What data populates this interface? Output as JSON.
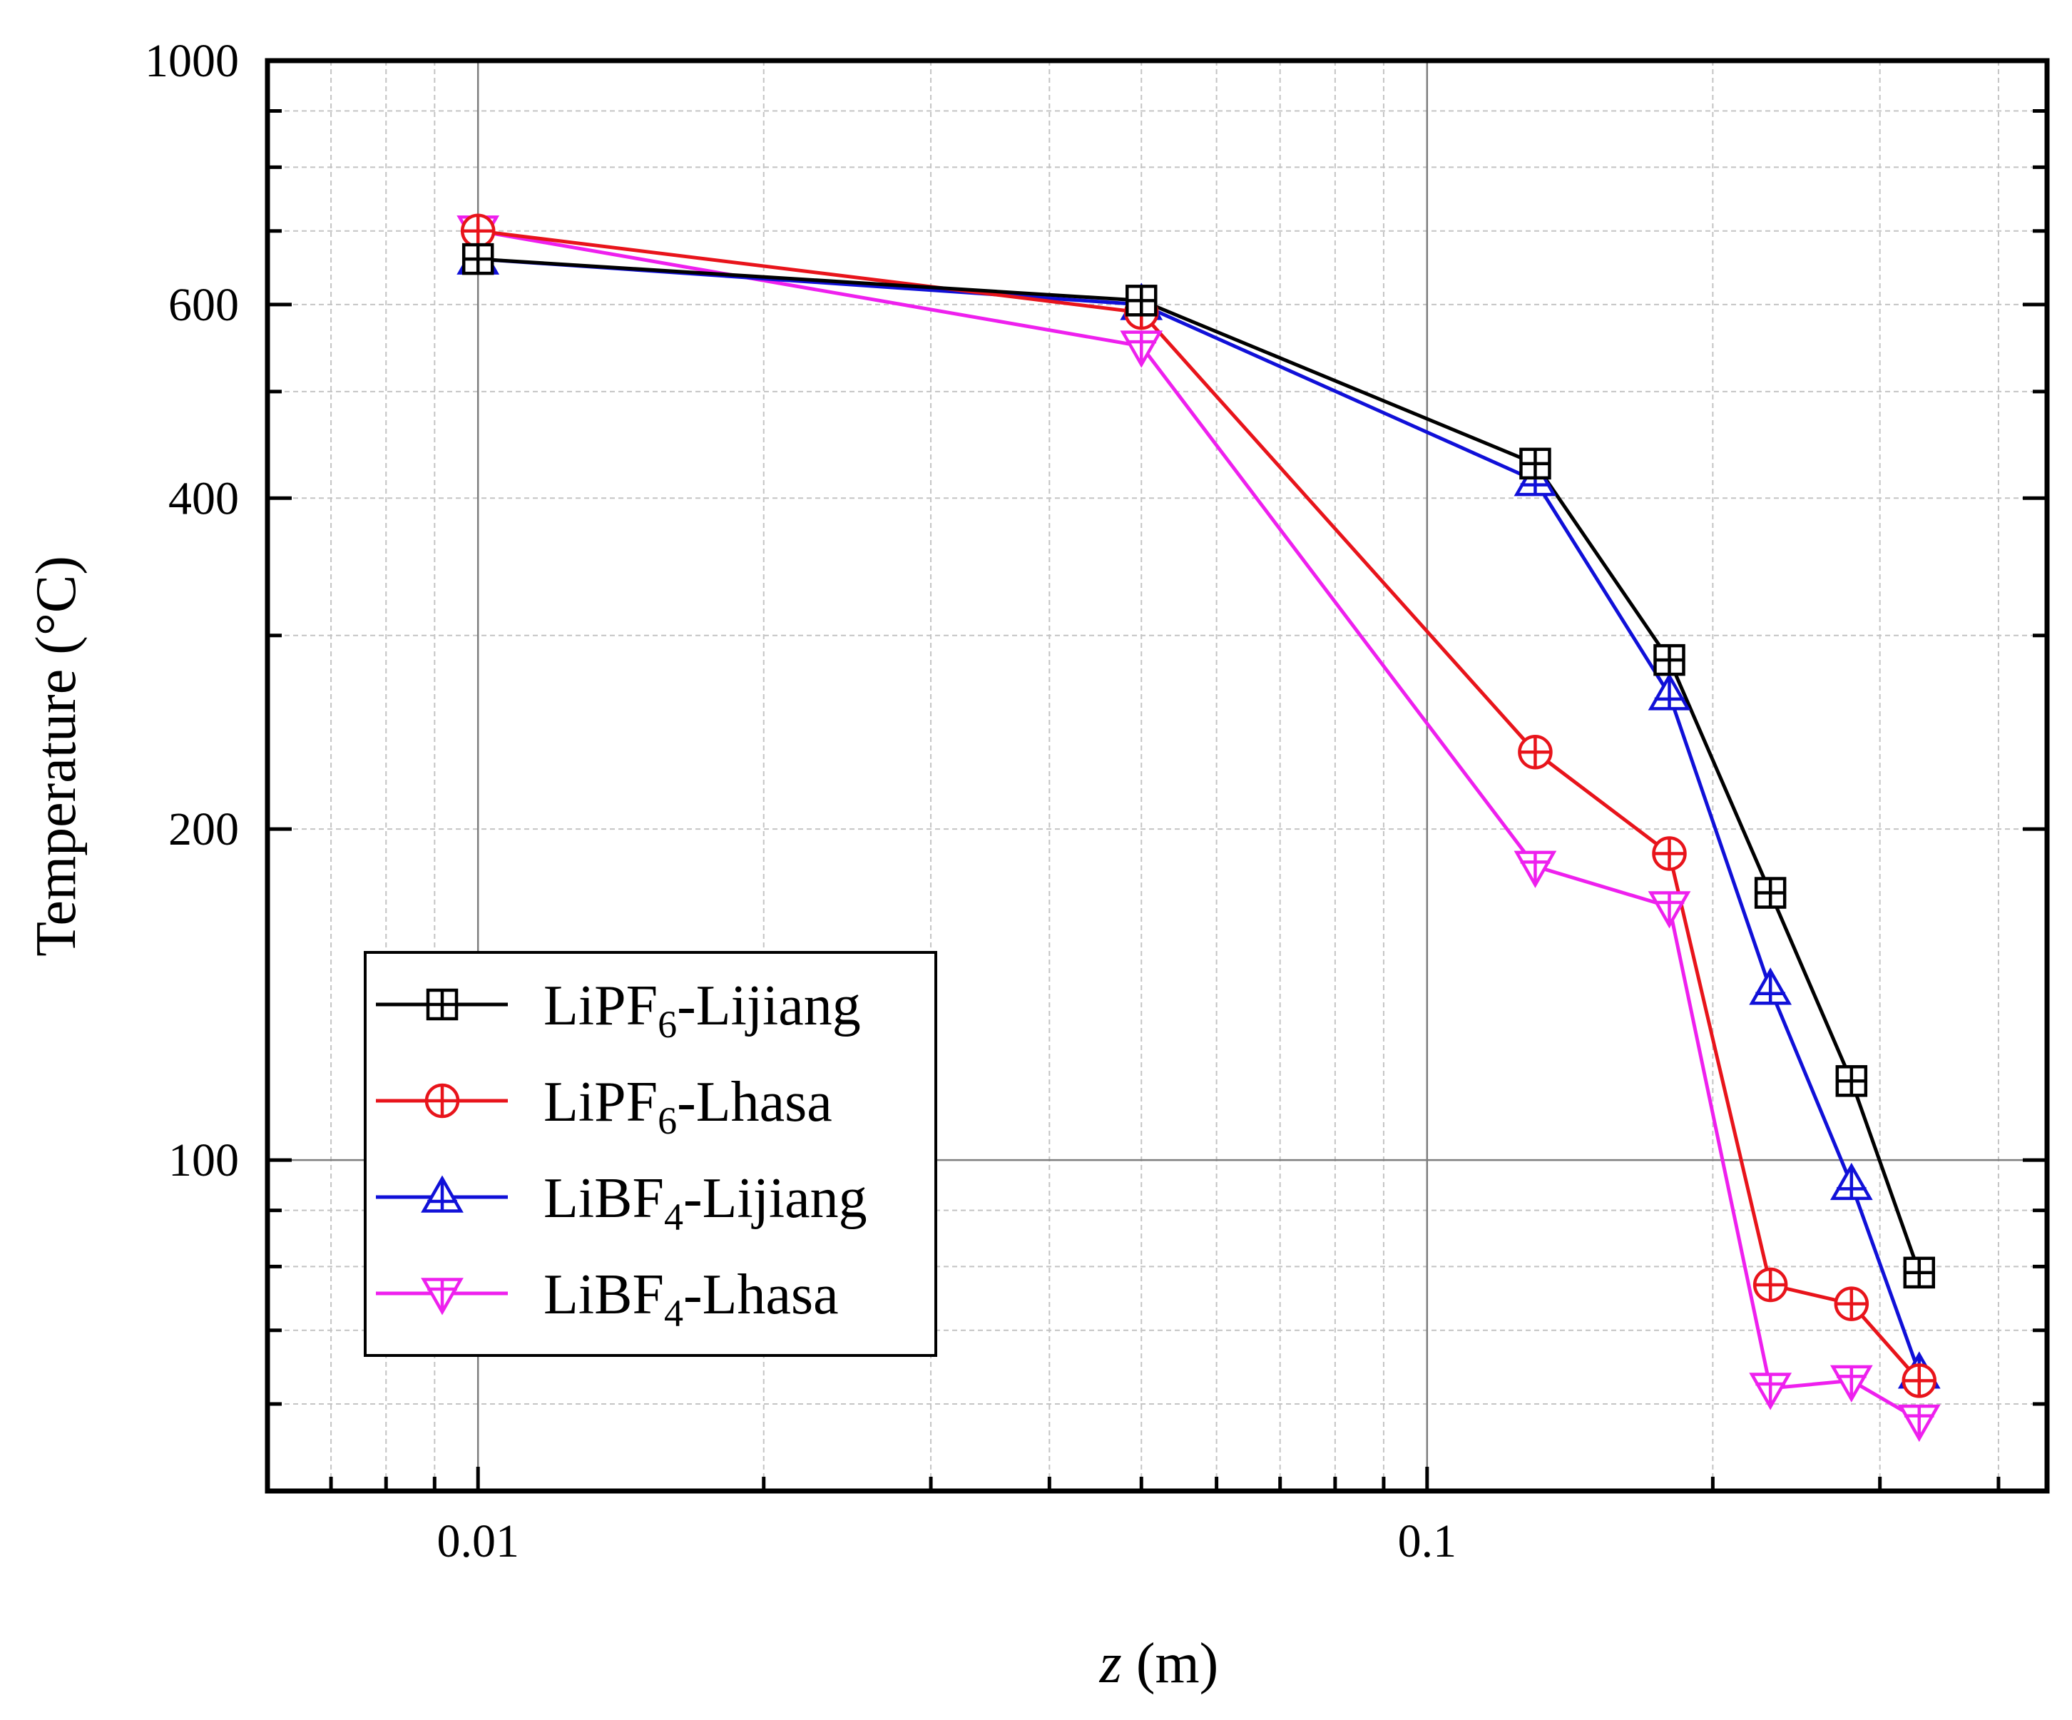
{
  "chart_data": {
    "type": "line",
    "title": "",
    "xlabel_var": "z",
    "xlabel_unit": " (m)",
    "ylabel": "Temperature (°C)",
    "x_scale": "log",
    "y_scale": "log",
    "xlim": [
      0.006,
      0.45
    ],
    "ylim": [
      50,
      1000
    ],
    "grid": true,
    "x_major_ticks": [
      {
        "value": 0.01,
        "label": "0.01"
      },
      {
        "value": 0.1,
        "label": "0.1"
      }
    ],
    "y_major_ticks": [
      {
        "value": 100,
        "label": "100"
      },
      {
        "value": 200,
        "label": "200"
      },
      {
        "value": 400,
        "label": "400"
      },
      {
        "value": 600,
        "label": "600"
      },
      {
        "value": 1000,
        "label": "1000"
      }
    ],
    "x": [
      0.01,
      0.05,
      0.13,
      0.18,
      0.23,
      0.28,
      0.33
    ],
    "series": [
      {
        "name": "LiPF6-Lijiang",
        "base": "LiPF",
        "sub": "6",
        "rest": "-Lijiang",
        "color": "#000000",
        "marker": "square-plus",
        "values": [
          660,
          605,
          430,
          285,
          175,
          118,
          79
        ]
      },
      {
        "name": "LiPF6-Lhasa",
        "base": "LiPF",
        "sub": "6",
        "rest": "-Lhasa",
        "color": "#e8141b",
        "marker": "circle-plus",
        "values": [
          700,
          590,
          235,
          190,
          77,
          74,
          63
        ]
      },
      {
        "name": "LiBF4-Lijiang",
        "base": "LiBF",
        "sub": "4",
        "rest": "-Lijiang",
        "color": "#1010d8",
        "marker": "triangle-up-plus",
        "values": [
          660,
          600,
          415,
          265,
          143,
          95,
          64
        ]
      },
      {
        "name": "LiBF4-Lhasa",
        "base": "LiBF",
        "sub": "4",
        "rest": "-Lhasa",
        "color": "#ee20ee",
        "marker": "triangle-down-plus",
        "values": [
          700,
          550,
          185,
          170,
          62,
          63,
          58
        ]
      }
    ],
    "legend_position": "bottom-left"
  }
}
